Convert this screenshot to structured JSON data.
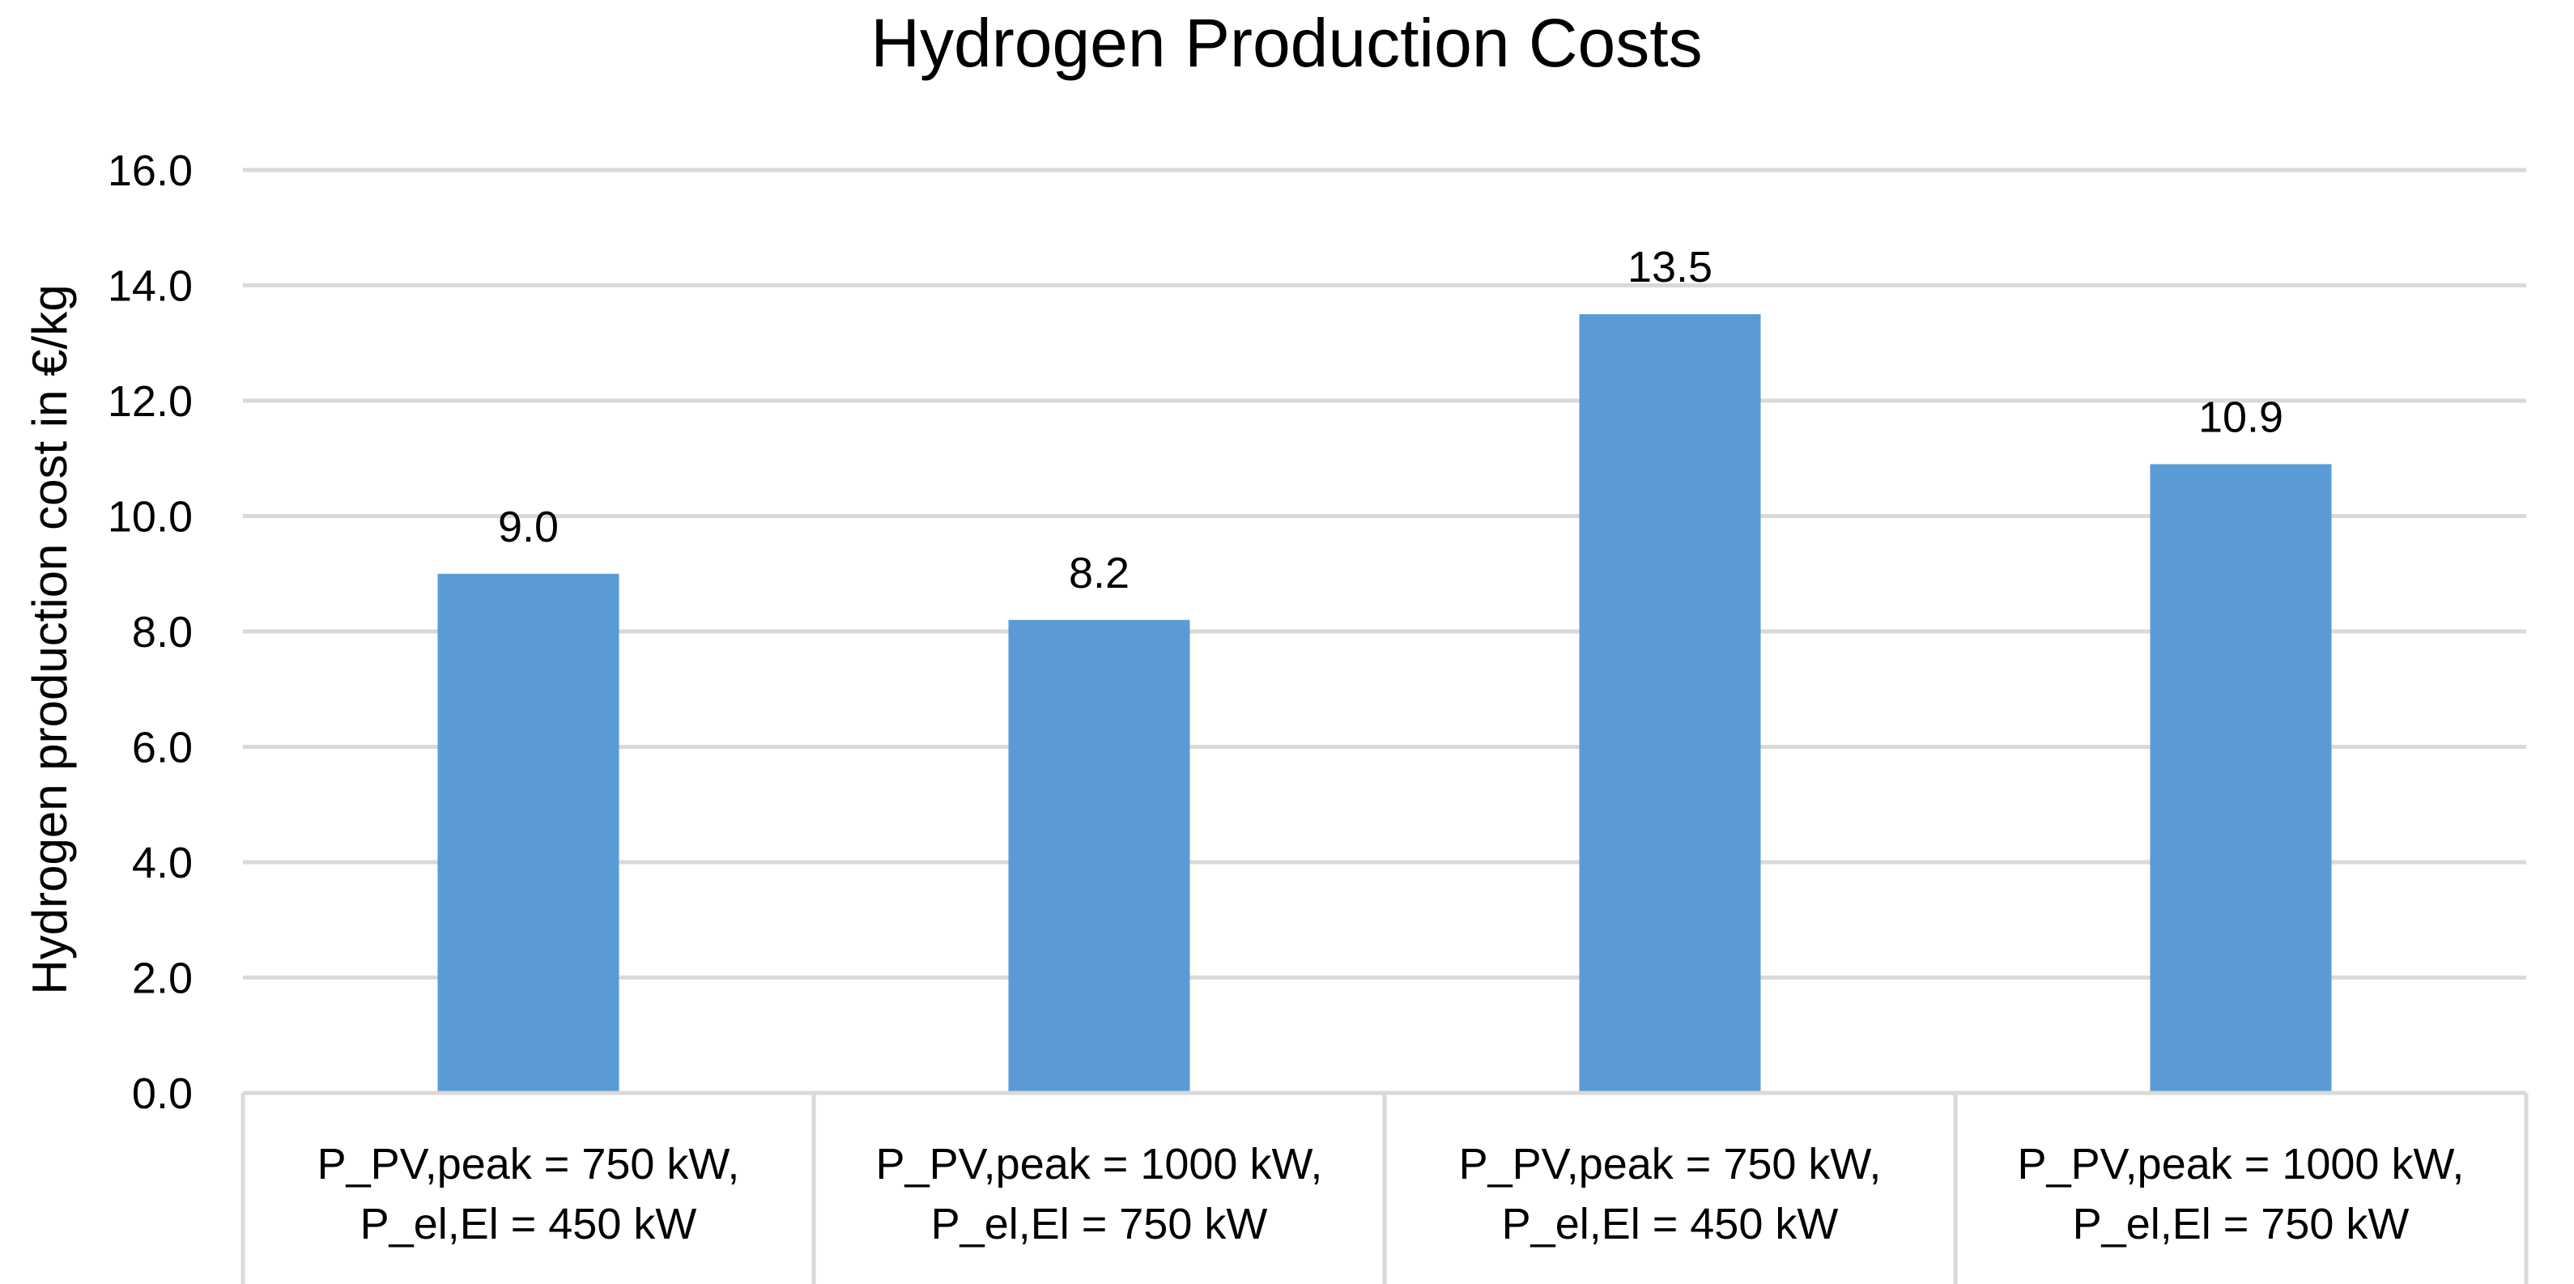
{
  "chart_data": {
    "type": "bar",
    "title": "Hydrogen Production Costs",
    "xlabel": "",
    "ylabel": "Hydrogen production cost in €/kg",
    "ylim": [
      0,
      16
    ],
    "yticks": [
      "0.0",
      "2.0",
      "4.0",
      "6.0",
      "8.0",
      "10.0",
      "12.0",
      "14.0",
      "16.0"
    ],
    "grid": true,
    "bar_color": "#5b9bd5",
    "grid_color": "#d9d9d9",
    "categories": [
      [
        "P_PV,peak = 750 kW,",
        "P_el,El = 450 kW"
      ],
      [
        "P_PV,peak = 1000 kW,",
        "P_el,El = 750 kW"
      ],
      [
        "P_PV,peak = 750 kW,",
        "P_el,El = 450 kW"
      ],
      [
        "P_PV,peak = 1000 kW,",
        "P_el,El = 750 kW"
      ]
    ],
    "values": [
      9.0,
      8.2,
      13.5,
      10.9
    ],
    "data_labels": [
      "9.0",
      "8.2",
      "13.5",
      "10.9"
    ]
  }
}
